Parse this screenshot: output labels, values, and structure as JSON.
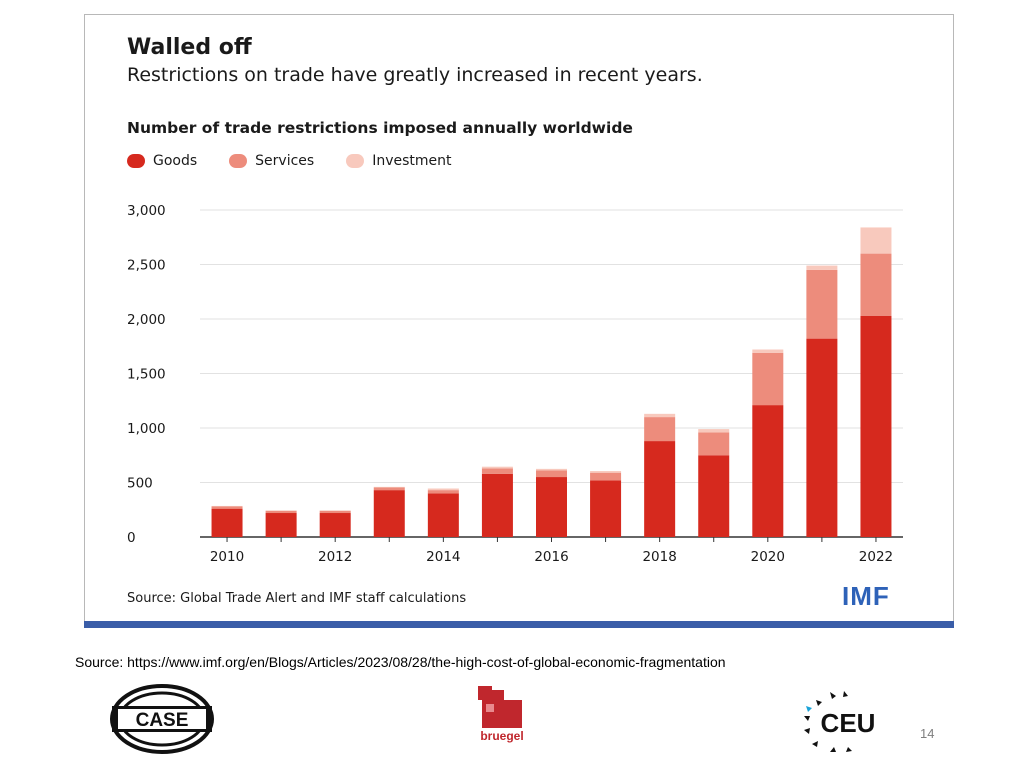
{
  "chart_data": {
    "type": "bar",
    "stacked": true,
    "title": "Walled off",
    "subtitle": "Restrictions on trade have greatly increased in recent years.",
    "chart_heading": "Number of trade restrictions imposed annually worldwide",
    "x": [
      2010,
      2011,
      2012,
      2013,
      2014,
      2015,
      2016,
      2017,
      2018,
      2019,
      2020,
      2021,
      2022
    ],
    "x_tick_labels": [
      "2010",
      "2012",
      "2014",
      "2016",
      "2018",
      "2020",
      "2022"
    ],
    "y_tick_labels": [
      "0",
      "500",
      "1,000",
      "1,500",
      "2,000",
      "2,500",
      "3,000"
    ],
    "ylim": [
      0,
      3000
    ],
    "grid": true,
    "legend_position": "top-left",
    "series": [
      {
        "name": "Goods",
        "color": "#d6291e",
        "values": [
          260,
          220,
          220,
          430,
          400,
          580,
          550,
          520,
          880,
          750,
          1210,
          1820,
          2030
        ]
      },
      {
        "name": "Services",
        "color": "#ed8c7c",
        "values": [
          20,
          20,
          20,
          25,
          30,
          50,
          60,
          70,
          220,
          210,
          480,
          630,
          570
        ]
      },
      {
        "name": "Investment",
        "color": "#f8c9bd",
        "values": [
          5,
          5,
          5,
          5,
          15,
          15,
          15,
          15,
          30,
          30,
          30,
          40,
          240
        ]
      }
    ],
    "source_note": "Source: Global Trade Alert and IMF staff calculations",
    "publisher_logo": "IMF"
  },
  "slide": {
    "source_url": "Source: https://www.imf.org/en/Blogs/Articles/2023/08/28/the-high-cost-of-global-economic-fragmentation",
    "page_number": "14",
    "logos": {
      "case": "CASE",
      "bruegel": "bruegel",
      "ceu": "CEU"
    }
  },
  "colors": {
    "grid": "#e2e2e2",
    "axis": "#333333",
    "imf_blue": "#2e62b8",
    "panel_border_bottom": "#3a5da8"
  }
}
